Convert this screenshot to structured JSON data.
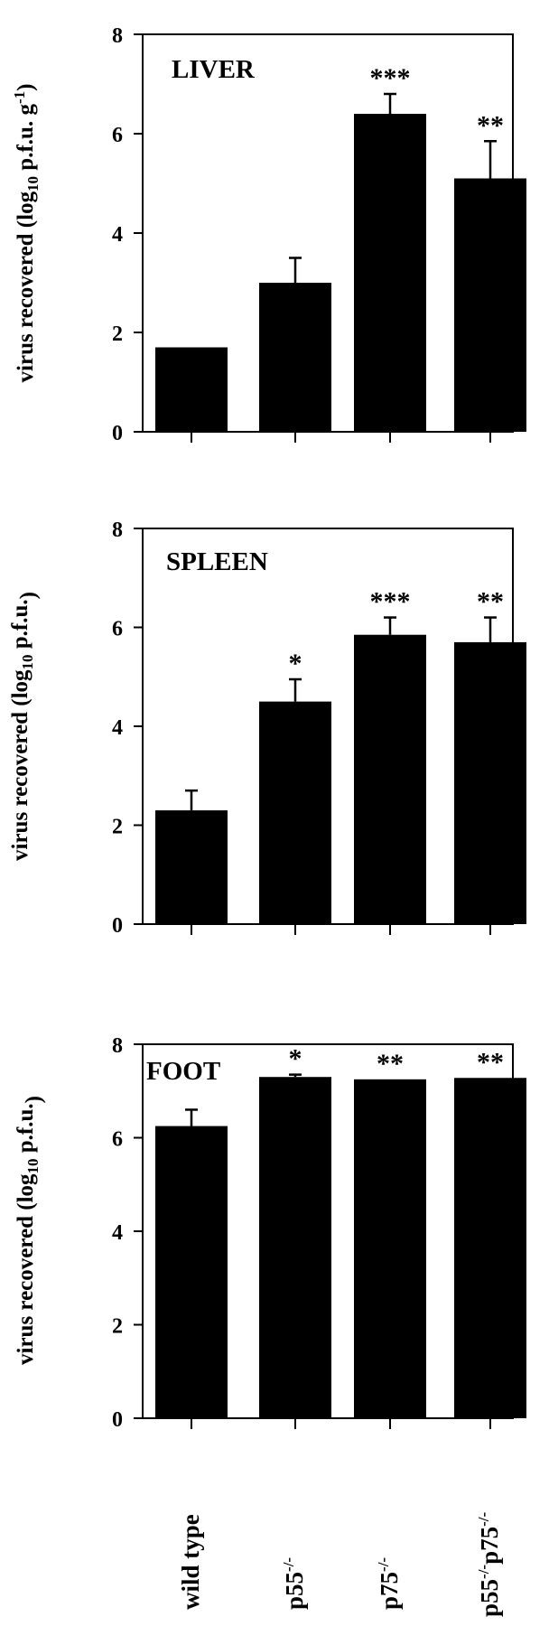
{
  "chart_data": [
    {
      "type": "bar",
      "title": "LIVER",
      "ylabel_main": "virus recovered (log",
      "ylabel_sub": "10",
      "ylabel_rest": " p.f.u. g",
      "ylabel_sup": "-1",
      "ylabel_end": ")",
      "ylim": [
        0,
        8
      ],
      "yticks": [
        "0",
        "2",
        "4",
        "6",
        "8"
      ],
      "categories": [
        "wild type",
        "p55-/-",
        "p75-/-",
        "p55-/-p75-/-"
      ],
      "values": [
        1.7,
        3.0,
        6.4,
        5.1
      ],
      "errors": [
        0,
        0.5,
        0.4,
        0.75
      ],
      "significance": [
        "",
        "",
        "***",
        "**"
      ]
    },
    {
      "type": "bar",
      "title": "SPLEEN",
      "ylabel_main": "virus recovered (log",
      "ylabel_sub": "10",
      "ylabel_rest": " p.f.u.",
      "ylabel_sup": "",
      "ylabel_end": ")",
      "ylim": [
        0,
        8
      ],
      "yticks": [
        "0",
        "2",
        "4",
        "6",
        "8"
      ],
      "categories": [
        "wild type",
        "p55-/-",
        "p75-/-",
        "p55-/-p75-/-"
      ],
      "values": [
        2.3,
        4.5,
        5.85,
        5.7
      ],
      "errors": [
        0.4,
        0.45,
        0.35,
        0.5
      ],
      "significance": [
        "",
        "*",
        "***",
        "**"
      ]
    },
    {
      "type": "bar",
      "title": "FOOT",
      "ylabel_main": "virus recovered (log",
      "ylabel_sub": "10",
      "ylabel_rest": " p.f.u.",
      "ylabel_sup": "",
      "ylabel_end": ")",
      "ylim": [
        0,
        8
      ],
      "yticks": [
        "0",
        "2",
        "4",
        "6",
        "8"
      ],
      "categories": [
        "wild type",
        "p55-/-",
        "p75-/-",
        "p55-/-p75-/-"
      ],
      "values": [
        6.25,
        7.3,
        7.25,
        7.28
      ],
      "errors": [
        0.35,
        0.05,
        0,
        0
      ],
      "significance": [
        "",
        "*",
        "**",
        "**"
      ]
    }
  ],
  "x_labels": [
    {
      "base": "wild type",
      "sup1": "",
      "mid": "",
      "sup2": ""
    },
    {
      "base": "p55",
      "sup1": "-/-",
      "mid": "",
      "sup2": ""
    },
    {
      "base": "p75",
      "sup1": "-/-",
      "mid": "",
      "sup2": ""
    },
    {
      "base": "p55",
      "sup1": "-/-",
      "mid": "p75",
      "sup2": "-/-"
    }
  ]
}
